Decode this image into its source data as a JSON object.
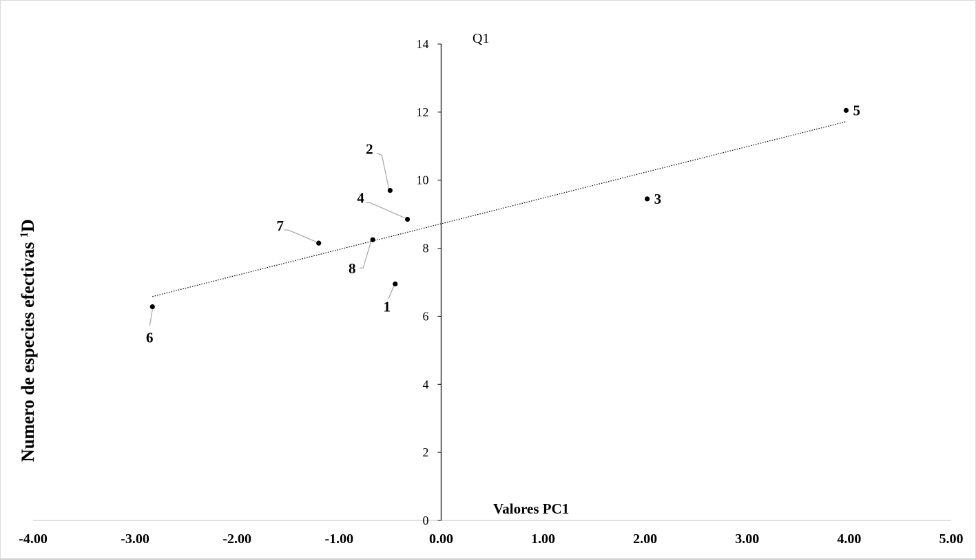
{
  "chart_data": {
    "type": "scatter",
    "title": "",
    "quadrant_label": "Q1",
    "xlabel": "Valores PC1",
    "ylabel": "Numero de especies efectivas ",
    "ylabel_superscript": "1",
    "ylabel_suffix": "D",
    "xlim": [
      -4.0,
      5.0
    ],
    "ylim": [
      0,
      14
    ],
    "x_ticks": [
      -4.0,
      -3.0,
      -2.0,
      -1.0,
      0.0,
      1.0,
      2.0,
      3.0,
      4.0,
      5.0
    ],
    "x_tick_labels": [
      "-4.00",
      "-3.00",
      "-2.00",
      "-1.00",
      "0.00",
      "1.00",
      "2.00",
      "3.00",
      "4.00",
      "5.00"
    ],
    "y_ticks": [
      0,
      2,
      4,
      6,
      8,
      10,
      12,
      14
    ],
    "y_tick_labels": [
      "0",
      "2",
      "4",
      "6",
      "8",
      "10",
      "12",
      "14"
    ],
    "grid": false,
    "points": [
      {
        "label": "1",
        "x": -0.45,
        "y": 6.95
      },
      {
        "label": "2",
        "x": -0.5,
        "y": 9.7
      },
      {
        "label": "3",
        "x": 2.02,
        "y": 9.45
      },
      {
        "label": "4",
        "x": -0.33,
        "y": 8.85
      },
      {
        "label": "5",
        "x": 3.97,
        "y": 12.05
      },
      {
        "label": "6",
        "x": -2.83,
        "y": 6.28
      },
      {
        "label": "7",
        "x": -1.2,
        "y": 8.15
      },
      {
        "label": "8",
        "x": -0.67,
        "y": 8.25
      }
    ],
    "trendline": {
      "style": "dotted",
      "x": [
        -2.83,
        3.97
      ],
      "y": [
        6.58,
        11.72
      ]
    }
  }
}
